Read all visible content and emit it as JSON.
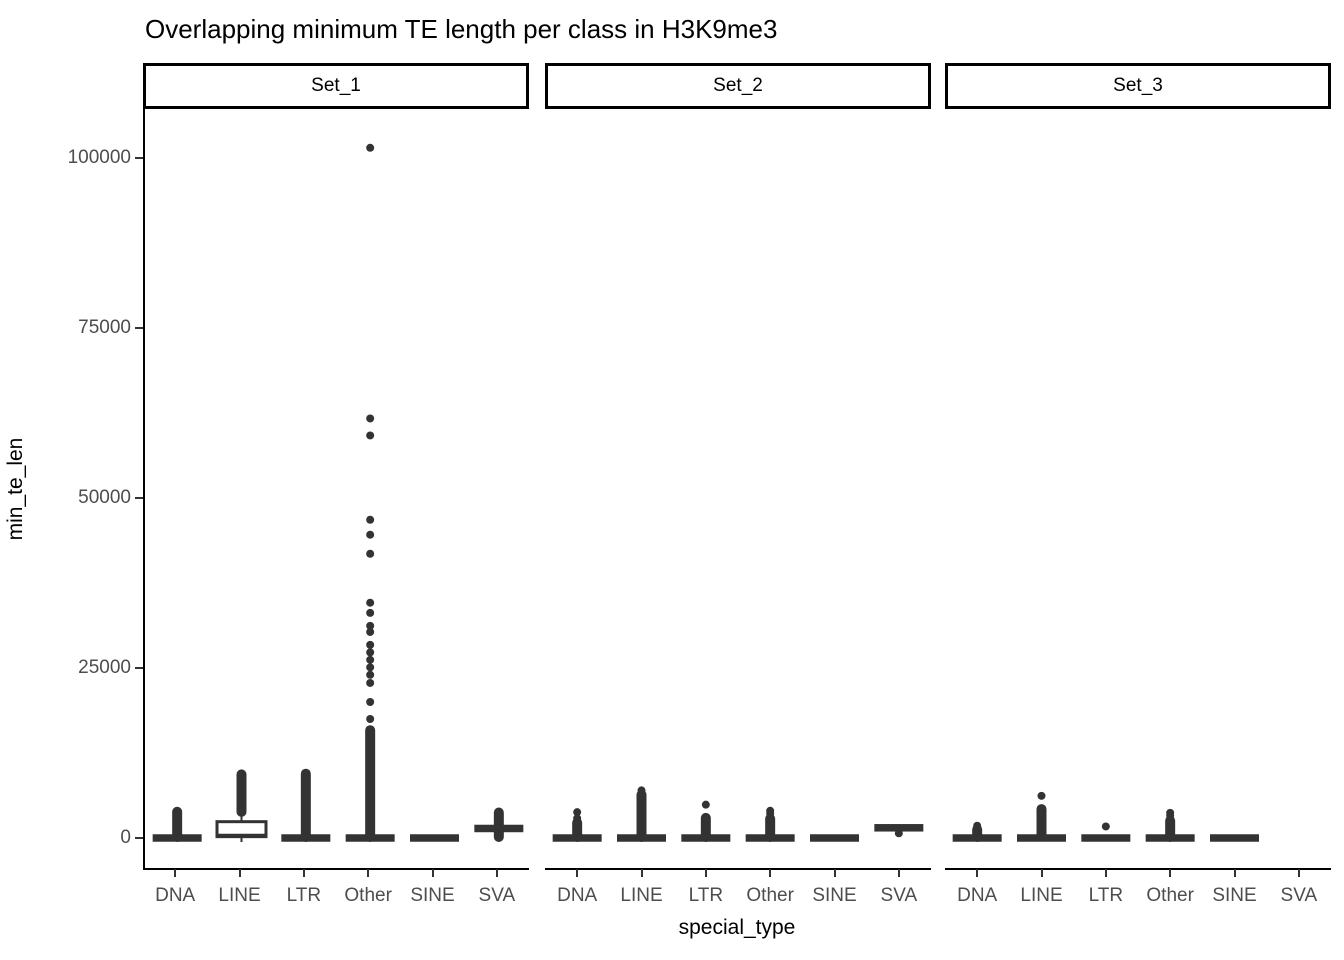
{
  "colors": {
    "background": "#ffffff",
    "axis_line": "#000000",
    "tick_mark": "#333333",
    "tick_label": "#4d4d4d",
    "title_text": "#000000",
    "strip_border": "#000000",
    "strip_background": "#ffffff",
    "data_ink": "#333333",
    "box_fill": "#ffffff"
  },
  "chart_data": {
    "type": "boxplot",
    "title": "Overlapping minimum TE length per class in H3K9me3",
    "xlabel": "special_type",
    "ylabel": "min_te_len",
    "categories": [
      "DNA",
      "LINE",
      "LTR",
      "Other",
      "SINE",
      "SVA"
    ],
    "y_ticks": [
      0,
      25000,
      50000,
      75000,
      100000
    ],
    "y_tick_labels": [
      "0",
      "25000",
      "50000",
      "75000",
      "100000"
    ],
    "ylim": [
      -3500,
      108000
    ],
    "grid": "off",
    "legend": "none",
    "facet_layout": "wrap-by-set, 3 columns, shared y axis",
    "facets": [
      {
        "name": "Set_1",
        "boxes": [
          {
            "category": "DNA",
            "collapsed_bar_at": 0,
            "box": null,
            "dense_column": [
              0,
              4000
            ],
            "outliers": []
          },
          {
            "category": "LINE",
            "collapsed_bar_at": null,
            "box": {
              "q1": 200,
              "median": 400,
              "q3": 2400,
              "whisker_low": 0,
              "whisker_high": 3600
            },
            "dense_column": [
              3700,
              9500
            ],
            "outliers": []
          },
          {
            "category": "LTR",
            "collapsed_bar_at": 0,
            "box": null,
            "dense_column": [
              0,
              9600
            ],
            "outliers": []
          },
          {
            "category": "Other",
            "collapsed_bar_at": 0,
            "box": null,
            "dense_column": [
              0,
              16000
            ],
            "outliers": [
              17500,
              20000,
              22800,
              24000,
              25100,
              26200,
              27300,
              28400,
              30300,
              31200,
              33100,
              34600,
              41800,
              44600,
              46800,
              59200,
              61700,
              101500
            ]
          },
          {
            "category": "SINE",
            "collapsed_bar_at": 0,
            "box": null,
            "dense_column": null,
            "outliers": []
          },
          {
            "category": "SVA",
            "collapsed_bar_at": 1400,
            "box": null,
            "dense_column": [
              0,
              3900
            ],
            "outliers": []
          }
        ]
      },
      {
        "name": "Set_2",
        "boxes": [
          {
            "category": "DNA",
            "collapsed_bar_at": 0,
            "box": null,
            "dense_column": [
              0,
              2400
            ],
            "outliers": [
              2900,
              3800
            ]
          },
          {
            "category": "LINE",
            "collapsed_bar_at": 0,
            "box": null,
            "dense_column": [
              0,
              6500
            ],
            "outliers": [
              7000
            ]
          },
          {
            "category": "LTR",
            "collapsed_bar_at": 0,
            "box": null,
            "dense_column": [
              0,
              3100
            ],
            "outliers": [
              4900
            ]
          },
          {
            "category": "Other",
            "collapsed_bar_at": 0,
            "box": null,
            "dense_column": [
              0,
              3000
            ],
            "outliers": [
              3600,
              4000
            ]
          },
          {
            "category": "SINE",
            "collapsed_bar_at": 0,
            "box": null,
            "dense_column": null,
            "outliers": []
          },
          {
            "category": "SVA",
            "collapsed_bar_at": 1500,
            "box": null,
            "dense_column": null,
            "outliers": [
              700
            ]
          }
        ]
      },
      {
        "name": "Set_3",
        "boxes": [
          {
            "category": "DNA",
            "collapsed_bar_at": 0,
            "box": null,
            "dense_column": [
              0,
              1400
            ],
            "outliers": [
              1800
            ]
          },
          {
            "category": "LINE",
            "collapsed_bar_at": 0,
            "box": null,
            "dense_column": [
              300,
              4400
            ],
            "outliers": [
              6200
            ]
          },
          {
            "category": "LTR",
            "collapsed_bar_at": 0,
            "box": null,
            "dense_column": null,
            "outliers": [
              1700
            ]
          },
          {
            "category": "Other",
            "collapsed_bar_at": 0,
            "box": null,
            "dense_column": [
              0,
              2700
            ],
            "outliers": [
              3300,
              3700
            ]
          },
          {
            "category": "SINE",
            "collapsed_bar_at": 0,
            "box": null,
            "dense_column": null,
            "outliers": []
          },
          {
            "category": "SVA",
            "collapsed_bar_at": null,
            "box": null,
            "dense_column": null,
            "outliers": []
          }
        ]
      }
    ]
  }
}
